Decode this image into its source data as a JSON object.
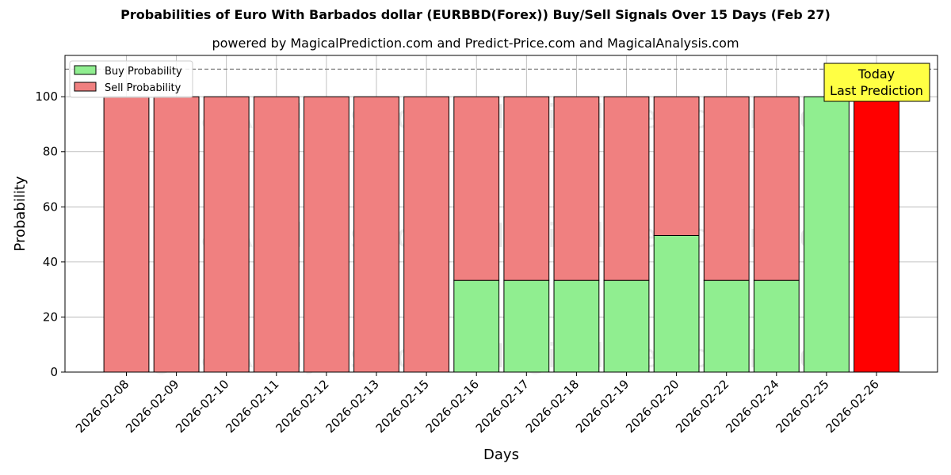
{
  "chart_data": {
    "type": "bar",
    "stacked": true,
    "title": "Probabilities of Euro With Barbados dollar (EURBBD(Forex)) Buy/Sell Signals Over 15 Days (Feb 27)",
    "subtitle": "powered by MagicalPrediction.com and Predict-Price.com and MagicalAnalysis.com",
    "xlabel": "Days",
    "ylabel": "Probability",
    "ylim": [
      0,
      115
    ],
    "yticks": [
      0,
      20,
      40,
      60,
      80,
      100
    ],
    "grid": true,
    "legend_position": "top-left",
    "categories": [
      "2026-02-08",
      "2026-02-09",
      "2026-02-10",
      "2026-02-11",
      "2026-02-12",
      "2026-02-13",
      "2026-02-15",
      "2026-02-16",
      "2026-02-17",
      "2026-02-18",
      "2026-02-19",
      "2026-02-20",
      "2026-02-22",
      "2026-02-24",
      "2026-02-25",
      "2026-02-26"
    ],
    "series": [
      {
        "name": "Buy Probability",
        "color": "#90ee90",
        "values": [
          0,
          0,
          0,
          0,
          0,
          0,
          0,
          33.3,
          33.3,
          33.3,
          33.3,
          49.6,
          33.3,
          33.3,
          100,
          0
        ]
      },
      {
        "name": "Sell Probability",
        "color": "#f08080",
        "values": [
          100,
          100,
          100,
          100,
          100,
          100,
          100,
          66.7,
          66.7,
          66.7,
          66.7,
          50.4,
          66.7,
          66.7,
          0,
          100
        ]
      }
    ],
    "highlight": {
      "category": "2026-02-26",
      "color": "#ff0000"
    },
    "reference_line": {
      "y": 110,
      "style": "dashed",
      "color": "#808080"
    },
    "annotation": {
      "lines": [
        "Today",
        "Last Prediction"
      ],
      "background": "#ffff44"
    },
    "watermarks": [
      "MagicalAnalysis.com",
      "MagicalPrediction.com"
    ]
  }
}
